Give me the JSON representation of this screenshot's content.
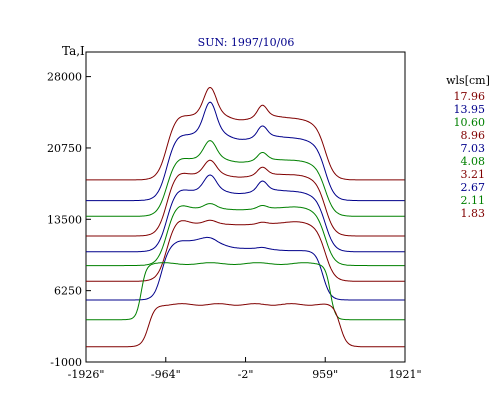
{
  "chart_data": {
    "type": "line",
    "title": "SUN: 1997/10/06",
    "ylabel": "Ta,I",
    "xlabel": "",
    "ylim": [
      -1000,
      30500
    ],
    "xlim": [
      -1926,
      1921
    ],
    "yticks": [
      28000,
      20750,
      13500,
      6250,
      -1000
    ],
    "ytick_labels": [
      "28000",
      "20750",
      "13500",
      "6250",
      "-1000"
    ],
    "xticks": [
      -1926,
      -964,
      -2,
      959,
      1921
    ],
    "xtick_labels": [
      "-1926\"",
      "-964\"",
      "-2\"",
      "959\"",
      "1921\""
    ],
    "legend": {
      "title": "wls[cm]",
      "position": "right"
    },
    "series": [
      {
        "name": "17.96",
        "color": "#800000",
        "baseline": 17500,
        "disk": 5800,
        "peak1": 3600,
        "peak2": 1800,
        "shape": "limb"
      },
      {
        "name": "13.95",
        "color": "#00008b",
        "baseline": 15400,
        "disk": 5900,
        "peak1": 4100,
        "peak2": 1700,
        "shape": "limb"
      },
      {
        "name": "10.60",
        "color": "#008000",
        "baseline": 13800,
        "disk": 5300,
        "peak1": 2400,
        "peak2": 1200,
        "shape": "limb"
      },
      {
        "name": "8.96",
        "color": "#800000",
        "baseline": 11800,
        "disk": 5800,
        "peak1": 1900,
        "peak2": 1200,
        "shape": "limb"
      },
      {
        "name": "7.03",
        "color": "#00008b",
        "baseline": 10200,
        "disk": 5700,
        "peak1": 2100,
        "peak2": 1500,
        "shape": "limb"
      },
      {
        "name": "4.08",
        "color": "#008000",
        "baseline": 8800,
        "disk": 5600,
        "peak1": 700,
        "peak2": 500,
        "shape": "limb"
      },
      {
        "name": "3.21",
        "color": "#800000",
        "baseline": 7200,
        "disk": 5700,
        "peak1": 500,
        "peak2": 300,
        "shape": "limb"
      },
      {
        "name": "2.67",
        "color": "#00008b",
        "baseline": 5300,
        "disk": 5200,
        "peak1": 300,
        "peak2": 200,
        "shape": "asym"
      },
      {
        "name": "2.11",
        "color": "#008000",
        "baseline": 3300,
        "disk": 5700,
        "peak1": 0,
        "peak2": 0,
        "shape": "wide"
      },
      {
        "name": "1.83",
        "color": "#800000",
        "baseline": 550,
        "disk": 4300,
        "peak1": 0,
        "peak2": 0,
        "shape": "flat"
      }
    ]
  }
}
